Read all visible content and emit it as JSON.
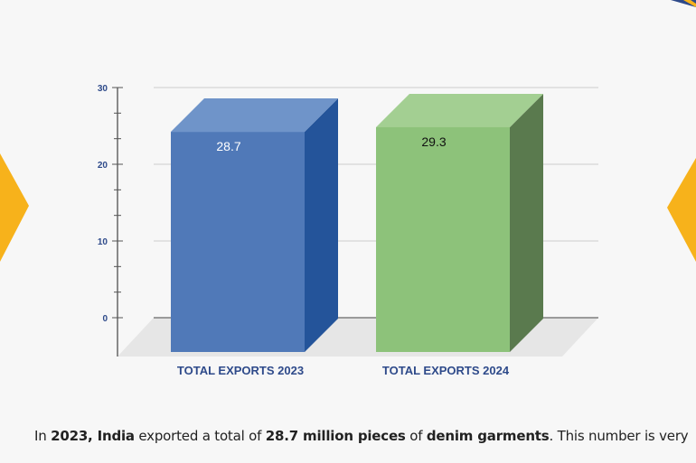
{
  "chart_data": {
    "type": "bar",
    "categories": [
      "TOTAL EXPORTS 2023",
      "TOTAL EXPORTS 2024"
    ],
    "values": [
      28.7,
      29.3
    ],
    "value_labels": [
      "28.7",
      "29.3"
    ],
    "colors": [
      "#5079b8",
      "#8dc27a"
    ],
    "yticks": [
      "0",
      "10",
      "20",
      "30"
    ],
    "ylim": [
      0,
      30
    ],
    "grid": true,
    "title": "",
    "xlabel": "",
    "ylabel": ""
  },
  "paragraph": {
    "p1": "In ",
    "b1": "2023, India",
    " p2": "",
    "p2": " exported a total of ",
    "b2": "28.7 million pieces",
    "p3": " of ",
    "b3": "denim garments",
    "p4": ". This number is very"
  }
}
